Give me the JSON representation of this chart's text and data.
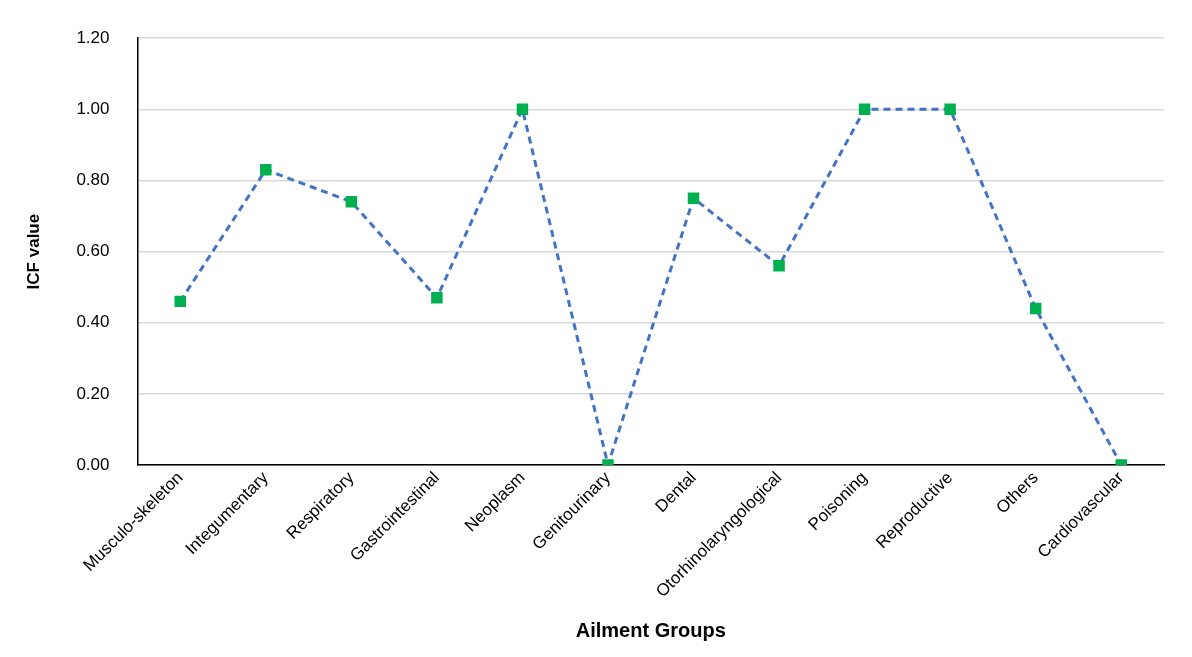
{
  "chart_data": {
    "type": "line",
    "xlabel": "Ailment Groups",
    "ylabel": "ICF value",
    "categories": [
      "Musculo-skeleton",
      "Integumentary",
      "Respiratory",
      "Gastrointestinal",
      "Neoplasm",
      "Genitourinary",
      "Dental",
      "Otorhinolaryngological",
      "Poisoning",
      "Reproductive",
      "Others",
      "Cardiovascular"
    ],
    "series": [
      {
        "color": "#4472c4",
        "colors": [
          "#00b050",
          "#00b050",
          "#00b050",
          "#00b050",
          "#00b050",
          "#00b050",
          "#00b050",
          "#00b050",
          "#00b050",
          "#00b050",
          "#00b050",
          "#00b050"
        ],
        "values": [
          0.46,
          0.83,
          0.74,
          0.47,
          1.0,
          0,
          0.75,
          0.56,
          1.0,
          1.0,
          0.44,
          0
        ]
      }
    ],
    "ylim": [
      0,
      1.2
    ],
    "yticks": [
      {
        "value": 0,
        "label": "0.00"
      },
      {
        "value": 0.2,
        "label": "0.20"
      },
      {
        "value": 0.4,
        "label": "0.40"
      },
      {
        "value": 0.6,
        "label": "0.60"
      },
      {
        "value": 0.8,
        "label": "0.80"
      },
      {
        "value": 1.0,
        "label": "1.00"
      },
      {
        "value": 1.2,
        "label": "1.20"
      }
    ],
    "grid": "y",
    "legend": false,
    "marker": "square",
    "line_style": "dashed"
  }
}
